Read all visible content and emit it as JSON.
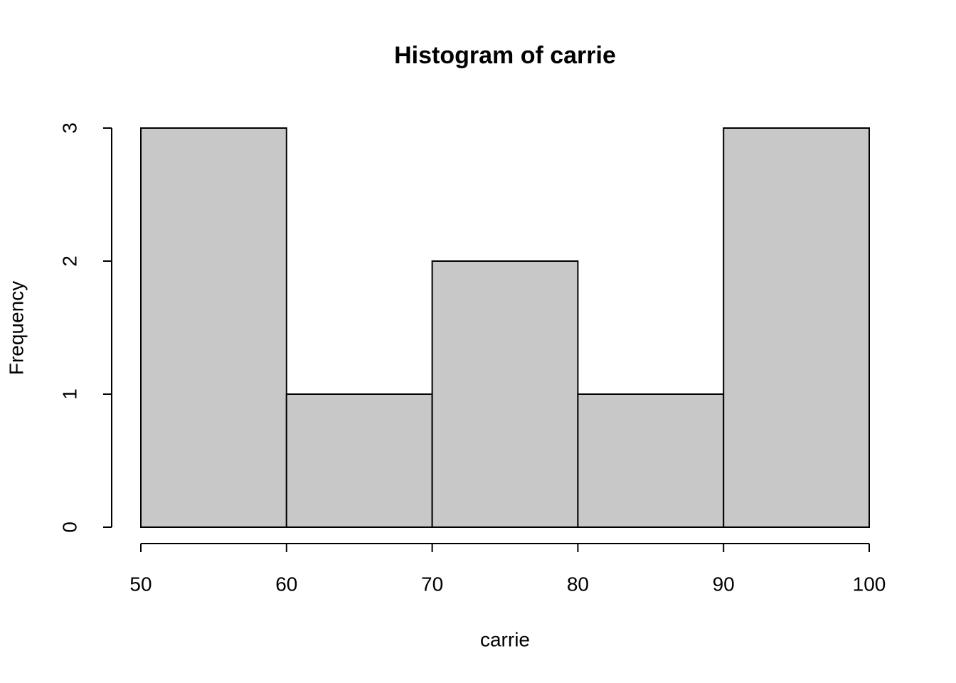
{
  "chart_data": {
    "type": "histogram",
    "title": "Histogram of carrie",
    "xlabel": "carrie",
    "ylabel": "Frequency",
    "bins": [
      50,
      60,
      70,
      80,
      90,
      100
    ],
    "values": [
      3,
      1,
      2,
      1,
      3
    ],
    "color": "#c8c8c8",
    "xlim": [
      50,
      100
    ],
    "ylim": [
      0,
      3
    ],
    "xticks": [
      50,
      60,
      70,
      80,
      90,
      100
    ],
    "yticks": [
      0,
      1,
      2,
      3
    ]
  }
}
